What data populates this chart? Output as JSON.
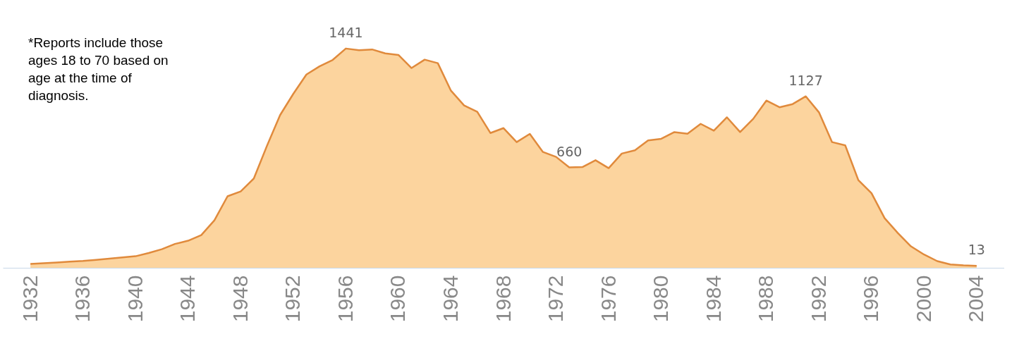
{
  "chart_data": {
    "type": "area",
    "x": [
      1932,
      1933,
      1934,
      1935,
      1936,
      1937,
      1938,
      1939,
      1940,
      1941,
      1942,
      1943,
      1944,
      1945,
      1946,
      1947,
      1948,
      1949,
      1950,
      1951,
      1952,
      1953,
      1954,
      1955,
      1956,
      1957,
      1958,
      1959,
      1960,
      1961,
      1962,
      1963,
      1964,
      1965,
      1966,
      1967,
      1968,
      1969,
      1970,
      1971,
      1972,
      1973,
      1974,
      1975,
      1976,
      1977,
      1978,
      1979,
      1980,
      1981,
      1982,
      1983,
      1984,
      1985,
      1986,
      1987,
      1988,
      1989,
      1990,
      1991,
      1992,
      1993,
      1994,
      1995,
      1996,
      1997,
      1998,
      1999,
      2000,
      2001,
      2002,
      2003,
      2004
    ],
    "series": [
      {
        "color": "#fcd49e",
        "values": [
          25,
          30,
          35,
          40,
          45,
          52,
          60,
          68,
          76,
          97,
          122,
          157,
          178,
          215,
          312,
          470,
          502,
          587,
          802,
          1004,
          1143,
          1270,
          1324,
          1366,
          1441,
          1430,
          1435,
          1409,
          1399,
          1313,
          1368,
          1345,
          1164,
          1067,
          1025,
          886,
          918,
          826,
          880,
          761,
          729,
          660,
          662,
          707,
          655,
          751,
          772,
          837,
          848,
          892,
          881,
          946,
          901,
          989,
          892,
          979,
          1099,
          1055,
          1076,
          1127,
          1022,
          826,
          805,
          576,
          490,
          326,
          229,
          141,
          87,
          44,
          22,
          16,
          13
        ],
        "value_labels": [
          null,
          null,
          null,
          null,
          null,
          null,
          null,
          null,
          null,
          null,
          null,
          null,
          null,
          null,
          null,
          null,
          null,
          null,
          null,
          null,
          null,
          null,
          null,
          null,
          "1441",
          null,
          null,
          null,
          null,
          null,
          null,
          null,
          null,
          null,
          null,
          null,
          null,
          null,
          null,
          null,
          null,
          "660",
          null,
          null,
          null,
          null,
          null,
          null,
          null,
          null,
          null,
          null,
          null,
          null,
          null,
          null,
          null,
          null,
          null,
          "1127",
          null,
          null,
          null,
          null,
          null,
          null,
          null,
          null,
          null,
          null,
          null,
          null,
          "13"
        ]
      }
    ],
    "xlim": [
      1929.9,
      2006.1
    ],
    "xticks": [
      1932,
      1936,
      1940,
      1944,
      1948,
      1952,
      1956,
      1960,
      1964,
      1968,
      1972,
      1976,
      1980,
      1984,
      1988,
      1992,
      1996,
      2000,
      2004
    ],
    "ylim": [
      0,
      1760
    ],
    "tick_labels": "x",
    "grid": false,
    "legend": false,
    "annotations": [
      "*Reports include those ages 18 to 70 based on age at the time of diagnosis."
    ]
  }
}
